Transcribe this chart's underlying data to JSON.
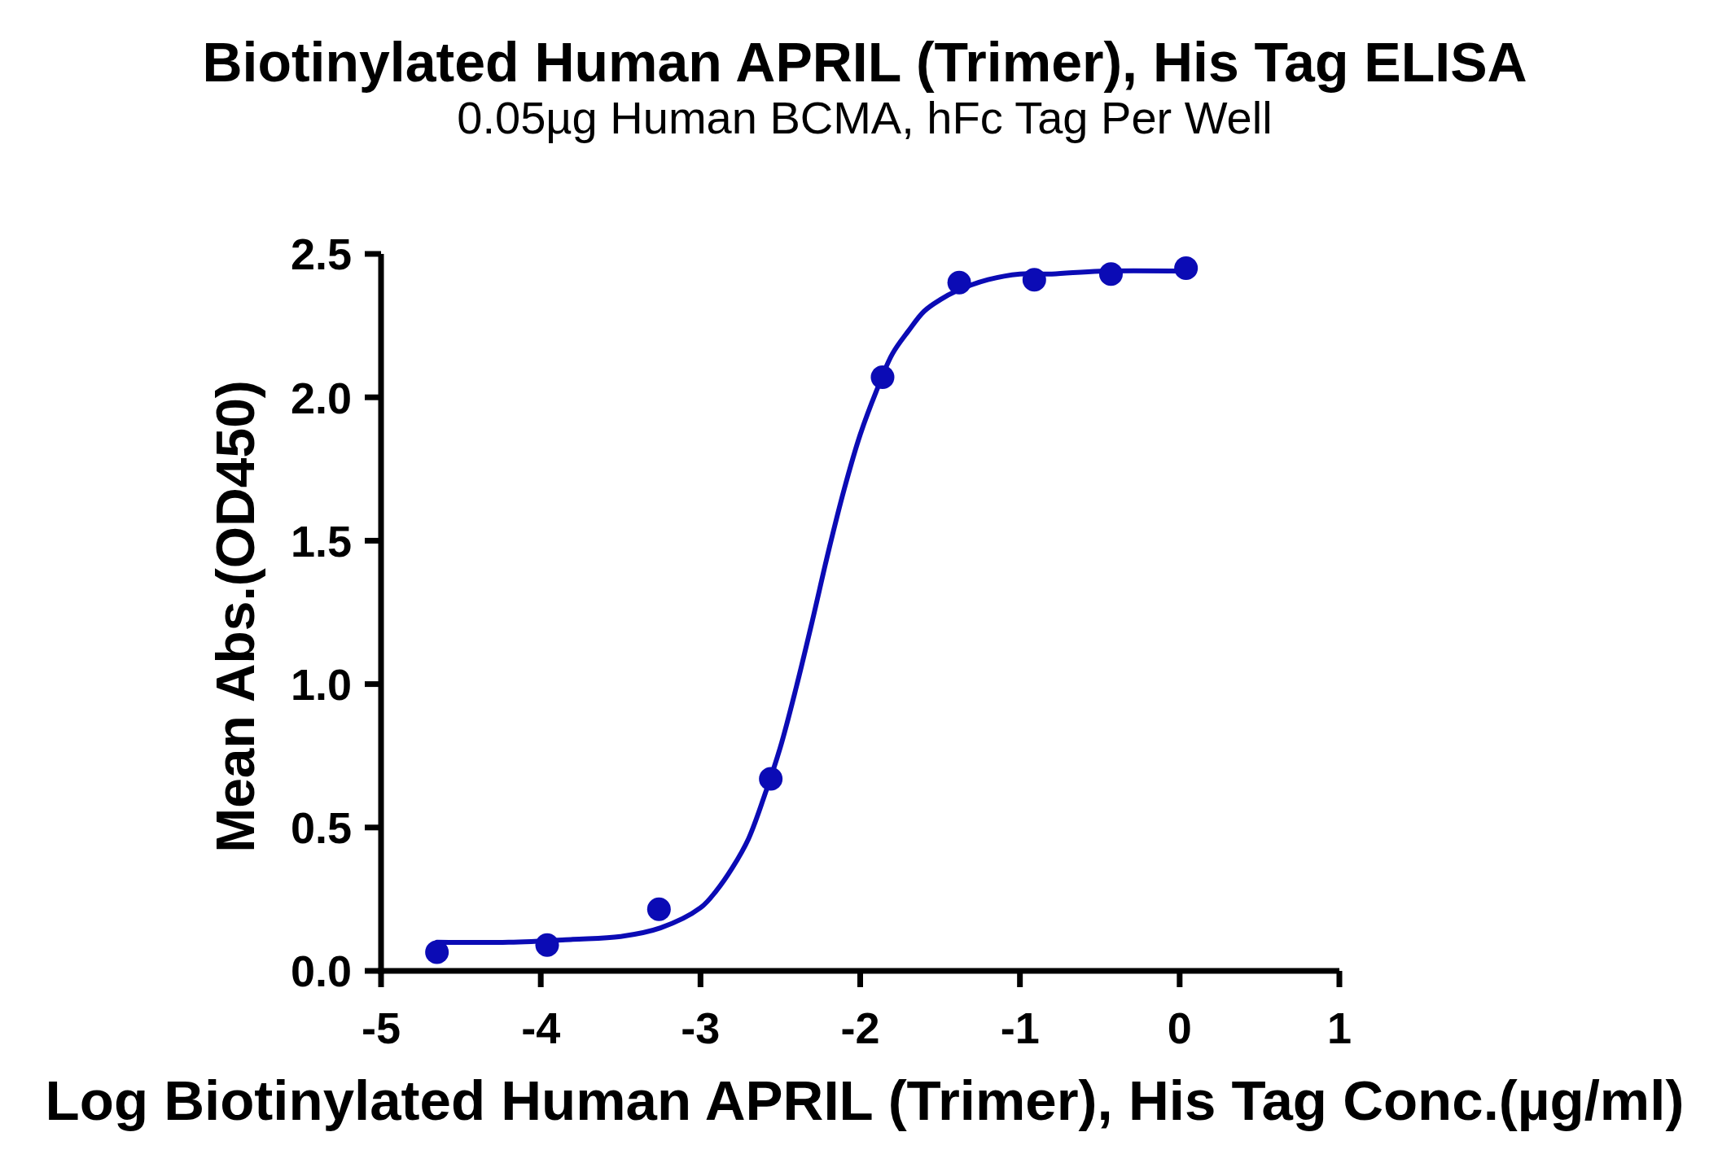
{
  "chart_data": {
    "type": "scatter",
    "title": "Biotinylated Human APRIL (Trimer), His Tag ELISA",
    "subtitle": "0.05µg Human BCMA, hFc Tag Per Well",
    "xlabel": "Log Biotinylated Human APRIL (Trimer), His Tag Conc.(µg/ml)",
    "ylabel": "Mean Abs.(OD450)",
    "xlim": [
      -5,
      1
    ],
    "xticks": [
      -5,
      -4,
      -3,
      -2,
      -1,
      0,
      1
    ],
    "ylim": [
      0,
      2.5
    ],
    "yticks": [
      {
        "value": 0,
        "label": "0.0"
      },
      0.5,
      {
        "value": 1,
        "label": "1.0"
      },
      1.5,
      {
        "value": 2,
        "label": "2.0"
      },
      2.5
    ],
    "series": [
      {
        "color": "#0b0bb5",
        "marker": "circle",
        "x": [
          -4.65,
          -3.96,
          -3.26,
          -2.56,
          -1.86,
          -1.38,
          -0.91,
          -0.43,
          0.04
        ],
        "values": [
          0.065,
          0.09,
          0.215,
          0.67,
          2.07,
          2.4,
          2.41,
          2.43,
          2.45
        ]
      },
      {
        "type": "line",
        "color": "#0b0bb5",
        "marker": "none",
        "line_style": "solid",
        "x": [
          -4.65,
          -4.2,
          -3.8,
          -3.5,
          -3.25,
          -3.0,
          -2.9,
          -2.8,
          -2.7,
          -2.6,
          -2.5,
          -2.4,
          -2.3,
          -2.2,
          -2.1,
          -2.0,
          -1.9,
          -1.8,
          -1.7,
          -1.6,
          -1.5,
          -1.4,
          -1.2,
          -1.0,
          -0.8,
          -0.5,
          0.04
        ],
        "values": [
          0.1,
          0.1,
          0.11,
          0.12,
          0.15,
          0.22,
          0.28,
          0.36,
          0.46,
          0.61,
          0.78,
          0.99,
          1.22,
          1.46,
          1.68,
          1.87,
          2.02,
          2.15,
          2.23,
          2.3,
          2.34,
          2.37,
          2.41,
          2.43,
          2.43,
          2.44,
          2.44
        ]
      }
    ]
  }
}
